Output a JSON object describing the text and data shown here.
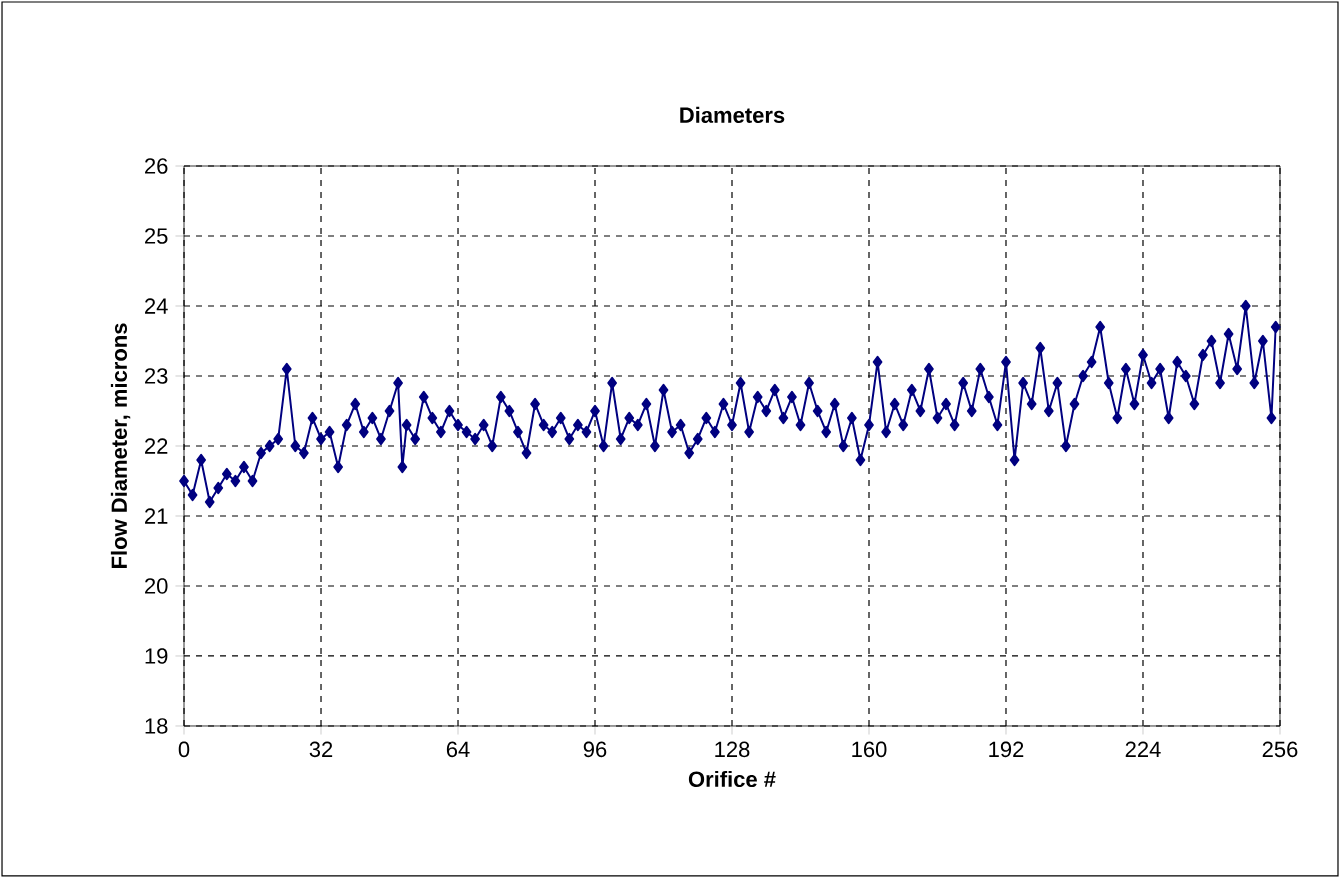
{
  "chart_data": {
    "type": "line",
    "title": "Diameters",
    "xlabel": "Orifice #",
    "ylabel": "Flow Diameter, microns",
    "x": [
      0,
      2,
      4,
      6,
      8,
      10,
      12,
      14,
      16,
      18,
      20,
      22,
      24,
      26,
      28,
      30,
      32,
      34,
      36,
      38,
      40,
      42,
      44,
      46,
      48,
      50,
      51,
      52,
      54,
      56,
      58,
      60,
      62,
      64,
      66,
      68,
      70,
      72,
      74,
      76,
      78,
      80,
      82,
      84,
      86,
      88,
      90,
      92,
      94,
      96,
      98,
      100,
      102,
      104,
      106,
      108,
      110,
      112,
      114,
      116,
      118,
      120,
      122,
      124,
      126,
      128,
      130,
      132,
      134,
      136,
      138,
      140,
      142,
      144,
      146,
      148,
      150,
      152,
      154,
      156,
      158,
      160,
      162,
      164,
      166,
      168,
      170,
      172,
      174,
      176,
      178,
      180,
      182,
      184,
      186,
      188,
      190,
      192,
      194,
      196,
      198,
      200,
      202,
      204,
      206,
      208,
      210,
      212,
      214,
      216,
      218,
      220,
      222,
      224,
      226,
      228,
      230,
      232,
      234,
      236,
      238,
      240,
      242,
      244,
      246,
      248,
      250,
      252,
      254,
      255
    ],
    "series": [
      {
        "color": "#000080",
        "values": [
          21.5,
          21.3,
          21.8,
          21.2,
          21.4,
          21.6,
          21.5,
          21.7,
          21.5,
          21.9,
          22.0,
          22.1,
          23.1,
          22.0,
          21.9,
          22.4,
          22.1,
          22.2,
          21.7,
          22.3,
          22.6,
          22.2,
          22.4,
          22.1,
          22.5,
          22.9,
          21.7,
          22.3,
          22.1,
          22.7,
          22.4,
          22.2,
          22.5,
          22.3,
          22.2,
          22.1,
          22.3,
          22.0,
          22.7,
          22.5,
          22.2,
          21.9,
          22.6,
          22.3,
          22.2,
          22.4,
          22.1,
          22.3,
          22.2,
          22.5,
          22.0,
          22.9,
          22.1,
          22.4,
          22.3,
          22.6,
          22.0,
          22.8,
          22.2,
          22.3,
          21.9,
          22.1,
          22.4,
          22.2,
          22.6,
          22.3,
          22.9,
          22.2,
          22.7,
          22.5,
          22.8,
          22.4,
          22.7,
          22.3,
          22.9,
          22.5,
          22.2,
          22.6,
          22.0,
          22.4,
          21.8,
          22.3,
          23.2,
          22.2,
          22.6,
          22.3,
          22.8,
          22.5,
          23.1,
          22.4,
          22.6,
          22.3,
          22.9,
          22.5,
          23.1,
          22.7,
          22.3,
          23.2,
          21.8,
          22.9,
          22.6,
          23.4,
          22.5,
          22.9,
          22.0,
          22.6,
          23.0,
          23.2,
          23.7,
          22.9,
          22.4,
          23.1,
          22.6,
          23.3,
          22.9,
          23.1,
          22.4,
          23.2,
          23.0,
          22.6,
          23.3,
          23.5,
          22.9,
          23.6,
          23.1,
          24.0,
          22.9,
          23.5,
          22.4,
          23.7
        ]
      }
    ],
    "xlim": [
      0,
      256
    ],
    "xticks": [
      0,
      32,
      64,
      96,
      128,
      160,
      192,
      224,
      256
    ],
    "ylim": [
      18,
      26
    ],
    "yticks": [
      18,
      19,
      20,
      21,
      22,
      23,
      24,
      25,
      26
    ],
    "grid": true,
    "marker": "diamond",
    "line_style": "solid"
  }
}
